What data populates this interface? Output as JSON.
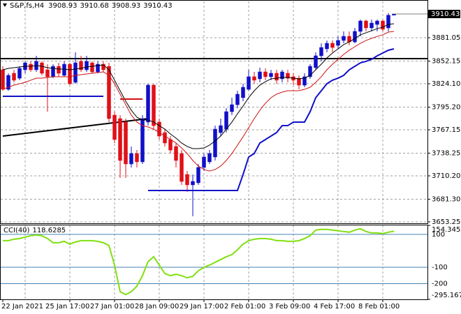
{
  "chart_data": {
    "type": "candlestick",
    "symbol": "S&P,fs,H4",
    "categories": [
      "22 Jan 2021",
      null,
      null,
      null,
      null,
      null,
      null,
      null,
      null,
      null,
      null,
      null,
      "25 Jan 17:00",
      null,
      null,
      null,
      null,
      null,
      null,
      null,
      "27 Jan 01:00",
      null,
      null,
      null,
      null,
      null,
      null,
      null,
      "28 Jan 09:00",
      null,
      null,
      null,
      null,
      null,
      null,
      null,
      "29 Jan 17:00",
      null,
      null,
      null,
      null,
      null,
      null,
      null,
      "2 Feb 01:00",
      null,
      null,
      null,
      null,
      null,
      null,
      null,
      "3 Feb 09:00",
      null,
      null,
      null,
      null,
      null,
      null,
      null,
      "4 Feb 17:00",
      null,
      null,
      null,
      null,
      null,
      null,
      null,
      "8 Feb 01:00",
      null,
      null
    ],
    "open": [
      3841.4,
      3817.2,
      3837.1,
      3831.0,
      3841.4,
      3848.3,
      3841.4,
      3850.0,
      3841.4,
      3832.8,
      3845.7,
      3834.5,
      3848.3,
      3825.9,
      3851.8,
      3841.4,
      3850.0,
      3838.8,
      3848.3,
      3845.7,
      3785.3,
      3781.0,
      3776.7,
      3724.9,
      3737.8,
      3727.5,
      3776.7,
      3822.4,
      3776.7,
      3763.7,
      3755.1,
      3746.5,
      3737.8,
      3711.9,
      3699.0,
      3701.6,
      3720.6,
      3727.5,
      3733.5,
      3763.7,
      3768.0,
      3789.6,
      3798.2,
      3806.9,
      3817.2,
      3832.8,
      3830.2,
      3838.8,
      3832.8,
      3837.1,
      3830.2,
      3837.1,
      3832.8,
      3831.0,
      3822.4,
      3832.8,
      3844.0,
      3858.7,
      3867.3,
      3874.2,
      3871.6,
      3877.7,
      3882.8,
      3875.9,
      3888.9,
      3901.8,
      3893.2,
      3897.5,
      3901.8,
      3893.2,
      3908.93
    ],
    "high": [
      3845.7,
      3837.1,
      3841.4,
      3845.7,
      3851.8,
      3851.8,
      3858.7,
      3851.8,
      3848.3,
      3848.3,
      3850.0,
      3851.8,
      3850.0,
      3863.0,
      3858.7,
      3858.7,
      3851.8,
      3851.8,
      3851.8,
      3850.0,
      3789.6,
      3785.3,
      3781.0,
      3746.5,
      3742.1,
      3785.3,
      3824.1,
      3824.1,
      3781.0,
      3768.0,
      3759.4,
      3750.8,
      3742.1,
      3716.2,
      3711.9,
      3724.9,
      3737.8,
      3742.1,
      3772.3,
      3781.0,
      3793.9,
      3806.9,
      3815.5,
      3824.1,
      3841.4,
      3838.8,
      3844.0,
      3843.1,
      3841.4,
      3841.4,
      3841.4,
      3841.4,
      3837.1,
      3834.5,
      3837.1,
      3848.3,
      3863.0,
      3874.2,
      3877.7,
      3877.7,
      3882.8,
      3888.9,
      3888.9,
      3893.2,
      3903.5,
      3903.5,
      3903.5,
      3903.5,
      3903.5,
      3911.5,
      3910.68
    ],
    "low": [
      3815.5,
      3815.5,
      3825.9,
      3828.5,
      3837.1,
      3838.8,
      3838.8,
      3834.5,
      3789.6,
      3831.0,
      3832.8,
      3832.8,
      3822.4,
      3824.1,
      3838.8,
      3838.8,
      3837.1,
      3837.1,
      3838.8,
      3776.7,
      3750.8,
      3707.6,
      3707.6,
      3720.6,
      3720.6,
      3724.9,
      3772.3,
      3768.0,
      3755.1,
      3746.5,
      3737.8,
      3720.6,
      3699.0,
      3690.3,
      3660.1,
      3699.0,
      3716.2,
      3724.9,
      3729.2,
      3759.4,
      3763.7,
      3785.3,
      3793.9,
      3802.6,
      3815.5,
      3824.1,
      3825.9,
      3828.5,
      3828.5,
      3824.1,
      3825.9,
      3825.9,
      3822.4,
      3817.2,
      3819.8,
      3830.2,
      3841.4,
      3851.8,
      3863.0,
      3863.0,
      3867.3,
      3874.2,
      3871.6,
      3874.2,
      3882.8,
      3888.9,
      3888.9,
      3888.9,
      3888.9,
      3888.9,
      3908.93
    ],
    "close": [
      3817.2,
      3834.5,
      3828.5,
      3843.1,
      3850.0,
      3841.4,
      3851.8,
      3837.1,
      3832.8,
      3845.7,
      3837.1,
      3848.3,
      3824.1,
      3850.0,
      3841.4,
      3851.8,
      3838.8,
      3848.3,
      3841.4,
      3781.0,
      3755.1,
      3729.2,
      3724.9,
      3737.8,
      3727.5,
      3781.0,
      3822.4,
      3772.3,
      3759.4,
      3750.8,
      3742.1,
      3729.2,
      3703.3,
      3699.0,
      3703.3,
      3720.6,
      3733.5,
      3737.8,
      3768.0,
      3772.3,
      3789.6,
      3798.2,
      3811.2,
      3819.8,
      3832.8,
      3828.5,
      3838.8,
      3832.8,
      3837.1,
      3828.5,
      3838.8,
      3831.0,
      3828.5,
      3822.4,
      3832.8,
      3845.7,
      3858.7,
      3869.0,
      3874.2,
      3869.0,
      3877.7,
      3882.8,
      3875.9,
      3888.9,
      3901.8,
      3893.2,
      3899.2,
      3901.8,
      3891.5,
      3908.93,
      3910.43
    ],
    "up_color": "#1010c8",
    "down_color": "#e01018",
    "series": [
      {
        "color": "#000000",
        "line_width": 1,
        "values": [
          3841.4,
          3843.1,
          3844.0,
          3844.9,
          3845.7,
          3845.7,
          3846.6,
          3845.7,
          3844.0,
          3843.1,
          3842.3,
          3842.3,
          3841.4,
          3842.3,
          3843.1,
          3844.9,
          3845.7,
          3846.6,
          3847.4,
          3841.4,
          3828.5,
          3815.5,
          3802.6,
          3791.3,
          3782.7,
          3779.3,
          3779.3,
          3776.7,
          3772.3,
          3768.0,
          3762.0,
          3756.8,
          3750.8,
          3746.5,
          3743.9,
          3743.9,
          3744.7,
          3748.2,
          3753.4,
          3759.4,
          3768.0,
          3776.7,
          3787.0,
          3796.5,
          3806.9,
          3815.5,
          3822.4,
          3826.7,
          3830.2,
          3831.0,
          3831.9,
          3831.9,
          3831.0,
          3830.2,
          3831.0,
          3834.5,
          3841.4,
          3848.3,
          3856.1,
          3862.1,
          3867.3,
          3872.5,
          3875.9,
          3880.2,
          3884.6,
          3887.2,
          3889.7,
          3892.3,
          3894.1,
          3897.5,
          3898.4
        ]
      },
      {
        "color": "#d01010",
        "line_width": 1,
        "values": [
          3817.2,
          3819.8,
          3822.4,
          3824.1,
          3825.9,
          3828.5,
          3831.0,
          3831.0,
          3831.9,
          3832.8,
          3832.8,
          3832.8,
          3832.8,
          3834.5,
          3835.4,
          3836.2,
          3837.1,
          3838.0,
          3838.8,
          3834.5,
          3824.1,
          3811.2,
          3798.2,
          3785.3,
          3776.7,
          3772.3,
          3770.6,
          3768.0,
          3763.7,
          3759.4,
          3755.1,
          3750.8,
          3744.7,
          3737.8,
          3729.2,
          3722.3,
          3718.0,
          3716.2,
          3718.0,
          3722.3,
          3729.2,
          3737.8,
          3748.2,
          3758.5,
          3769.8,
          3781.0,
          3791.3,
          3800.0,
          3806.9,
          3811.2,
          3813.8,
          3815.5,
          3815.5,
          3815.5,
          3817.2,
          3819.8,
          3825.9,
          3832.8,
          3841.4,
          3848.3,
          3854.4,
          3860.4,
          3865.6,
          3869.9,
          3874.2,
          3877.7,
          3880.2,
          3882.8,
          3884.6,
          3888.0,
          3888.9
        ]
      },
      {
        "color": "#1010c8",
        "line_width": 2,
        "values": [
          3808.6,
          3808.6,
          3808.6,
          3808.6,
          3808.6,
          3808.6,
          3808.6,
          3808.6,
          3808.6,
          3808.6,
          3808.6,
          3808.6,
          3808.6,
          3808.6,
          3808.6,
          3808.6,
          3808.6,
          3808.6,
          3808.6,
          null,
          null,
          null,
          null,
          null,
          null,
          null,
          3692.1,
          3692.1,
          3692.1,
          3692.1,
          3692.1,
          3692.1,
          3692.1,
          3692.1,
          3692.1,
          3692.1,
          3692.1,
          3692.1,
          3692.1,
          3692.1,
          3692.1,
          3692.1,
          3692.1,
          3711.9,
          3733.5,
          3737.8,
          3750.8,
          3755.1,
          3759.4,
          3763.7,
          3772.3,
          3772.3,
          3776.7,
          3776.7,
          3776.7,
          3789.6,
          3806.9,
          3815.5,
          3824.1,
          3828.5,
          3831.0,
          3834.5,
          3841.4,
          3845.7,
          3850.0,
          3851.8,
          3854.4,
          3858.7,
          3862.1,
          3865.6,
          3867.3
        ]
      },
      {
        "color": "#d01010",
        "line_width": 2,
        "values": [
          null,
          null,
          null,
          null,
          null,
          null,
          null,
          null,
          null,
          null,
          null,
          null,
          null,
          null,
          null,
          null,
          null,
          null,
          null,
          null,
          null,
          3805.1,
          3805.1,
          3805.1,
          3805.1,
          3805.1,
          null,
          null,
          null,
          null,
          null,
          null,
          null,
          null,
          null,
          null,
          null,
          null,
          null,
          null,
          null,
          null,
          null,
          null,
          null,
          null,
          null,
          null,
          null,
          null,
          null,
          null,
          null,
          null,
          null,
          null,
          null,
          null,
          null,
          null,
          null,
          null,
          null,
          null,
          null,
          null,
          null,
          null,
          null,
          null,
          null
        ]
      }
    ],
    "hlines": [
      {
        "value": 3855.2,
        "color": "#000000"
      }
    ],
    "trendlines": [
      {
        "color": "#000000",
        "points": [
          [
            0,
            3759.4
          ],
          [
            26,
            3781.0
          ]
        ]
      }
    ],
    "ylim": [
      3651.5,
      3926.0
    ],
    "yticks": [
      3653.25,
      {
        "value": 3681.3,
        "label": "3681.30"
      },
      {
        "value": 3710.2,
        "label": "3710.20"
      },
      3738.25,
      3767.15,
      {
        "value": 3795.2,
        "label": "3795.20"
      },
      {
        "value": 3824.1,
        "label": "3824.10"
      },
      3852.15,
      3881.05
    ],
    "grid": true,
    "cci": {
      "label": "CCI(40)",
      "color": "#80e010",
      "level_color": "#4682b4",
      "values": [
        61.7,
        61.7,
        70.2,
        74.5,
        83.0,
        91.5,
        95.7,
        91.5,
        74.5,
        48.9,
        48.9,
        57.4,
        40.4,
        53.2,
        61.7,
        61.7,
        61.7,
        57.4,
        48.9,
        31.9,
        -87.2,
        -248.9,
        -266.0,
        -248.9,
        -214.9,
        -151.1,
        -66.0,
        -36.2,
        -87.2,
        -138.3,
        -151.1,
        -142.6,
        -151.1,
        -163.8,
        -155.3,
        -121.3,
        -100.0,
        -87.2,
        -70.2,
        -53.2,
        -36.2,
        -23.4,
        6.4,
        40.4,
        61.7,
        70.2,
        74.5,
        74.5,
        70.2,
        61.7,
        61.7,
        57.4,
        57.4,
        61.7,
        74.5,
        91.5,
        125.5,
        129.8,
        129.8,
        125.5,
        121.3,
        117.0,
        112.8,
        125.5,
        134.0,
        117.0,
        108.5,
        108.5,
        104.3,
        112.8,
        118.6285
      ],
      "ylim": [
        -295.1674,
        154.3455
      ],
      "yticks": [
        154.3455,
        -295.1674
      ],
      "levels": [
        100,
        -100,
        -200
      ]
    }
  }
}
